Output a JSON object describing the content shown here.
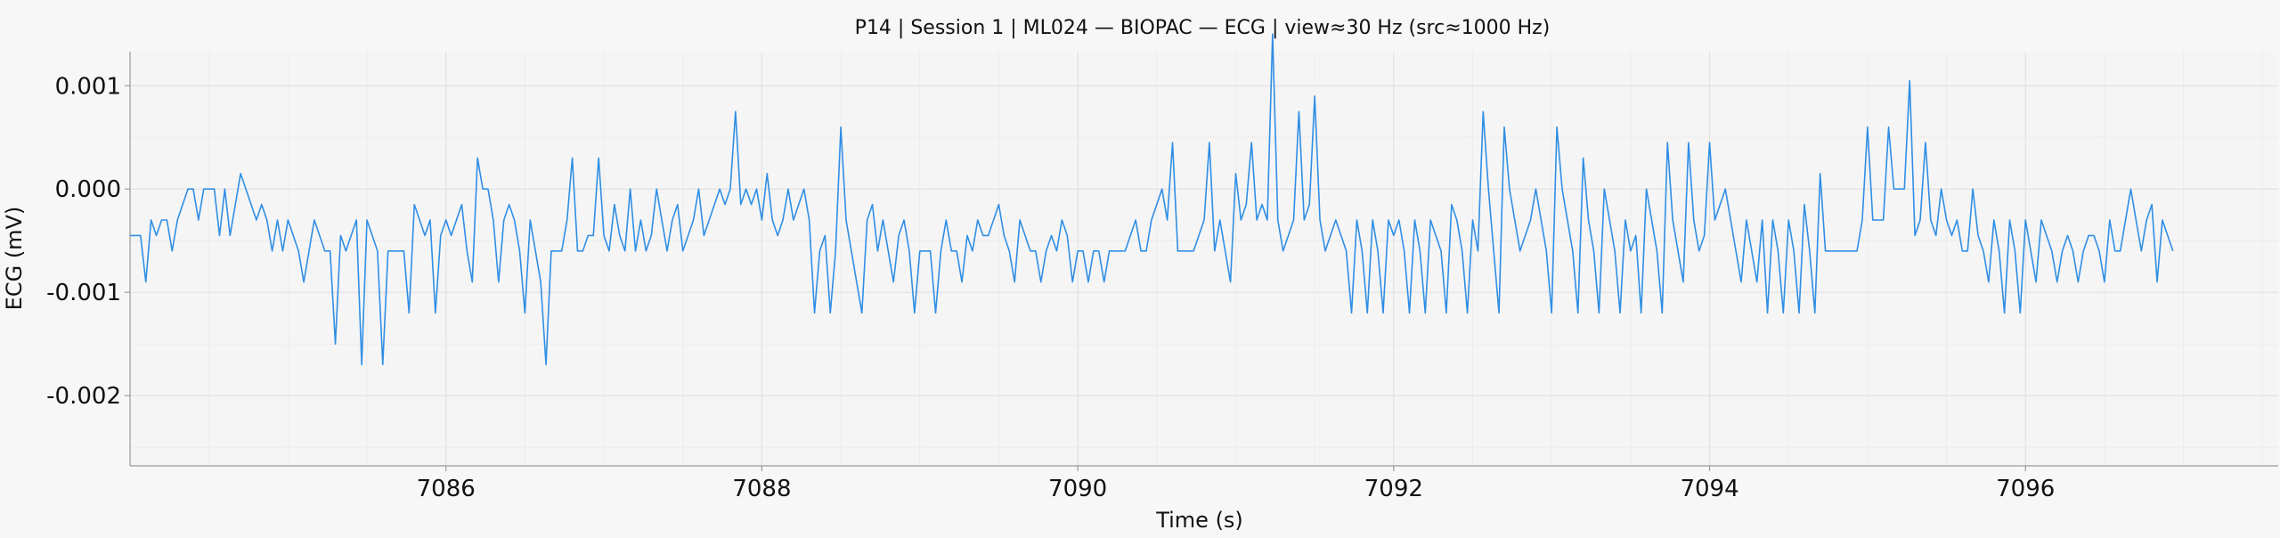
{
  "chart_data": {
    "type": "line",
    "title": "P14 | Session 1 | ML024 — BIOPAC — ECG | view≈30 Hz (src≈1000 Hz)",
    "xlabel": "Time (s)",
    "ylabel": "ECG (mV)",
    "xlim": [
      7084.0,
      7097.6
    ],
    "ylim": [
      -0.00268,
      0.00133
    ],
    "x_ticks": [
      7086,
      7088,
      7090,
      7092,
      7094,
      7096
    ],
    "x_tick_labels": [
      "7086",
      "7088",
      "7090",
      "7092",
      "7094",
      "7096"
    ],
    "y_ticks": [
      0.001,
      0.0,
      -0.001,
      -0.002
    ],
    "y_tick_labels": [
      "0.001",
      "0.000",
      "-0.001",
      "-0.002"
    ],
    "grid": true,
    "legend": "none",
    "x_start": 7084.0,
    "sample_rate_hz": 30,
    "series": [
      {
        "color": "#2f8ee5",
        "values": [
          -0.00045,
          -0.00045,
          -0.00045,
          -0.0009,
          -0.0003,
          -0.00045,
          -0.0003,
          -0.0003,
          -0.0006,
          -0.0003,
          -0.00015,
          0.0,
          0.0,
          -0.0003,
          0.0,
          0.0,
          0.0,
          -0.00045,
          0.0,
          -0.00045,
          -0.00015,
          0.00015,
          0.0,
          -0.00015,
          -0.0003,
          -0.00015,
          -0.0003,
          -0.0006,
          -0.0003,
          -0.0006,
          -0.0003,
          -0.00045,
          -0.0006,
          -0.0009,
          -0.0006,
          -0.0003,
          -0.00045,
          -0.0006,
          -0.0006,
          -0.0015,
          -0.00045,
          -0.0006,
          -0.00045,
          -0.0003,
          -0.0017,
          -0.0003,
          -0.00045,
          -0.0006,
          -0.0017,
          -0.0006,
          -0.0006,
          -0.0006,
          -0.0006,
          -0.0012,
          -0.00015,
          -0.0003,
          -0.00045,
          -0.0003,
          -0.0012,
          -0.00045,
          -0.0003,
          -0.00045,
          -0.0003,
          -0.00015,
          -0.0006,
          -0.0009,
          0.0003,
          0.0,
          0.0,
          -0.0003,
          -0.0009,
          -0.0003,
          -0.00015,
          -0.0003,
          -0.0006,
          -0.0012,
          -0.0003,
          -0.0006,
          -0.0009,
          -0.0017,
          -0.0006,
          -0.0006,
          -0.0006,
          -0.0003,
          0.0003,
          -0.0006,
          -0.0006,
          -0.00045,
          -0.00045,
          0.0003,
          -0.00045,
          -0.0006,
          -0.00015,
          -0.00045,
          -0.0006,
          0.0,
          -0.0006,
          -0.0003,
          -0.0006,
          -0.00045,
          0.0,
          -0.0003,
          -0.0006,
          -0.0003,
          -0.00015,
          -0.0006,
          -0.00045,
          -0.0003,
          0.0,
          -0.00045,
          -0.0003,
          -0.00015,
          0.0,
          -0.00015,
          0.0,
          0.00075,
          -0.00015,
          0.0,
          -0.00015,
          0.0,
          -0.0003,
          0.00015,
          -0.0003,
          -0.00045,
          -0.0003,
          0.0,
          -0.0003,
          -0.00015,
          0.0,
          -0.0003,
          -0.0012,
          -0.0006,
          -0.00045,
          -0.0012,
          -0.0006,
          0.0006,
          -0.0003,
          -0.0006,
          -0.0009,
          -0.0012,
          -0.0003,
          -0.00015,
          -0.0006,
          -0.0003,
          -0.0006,
          -0.0009,
          -0.00045,
          -0.0003,
          -0.0006,
          -0.0012,
          -0.0006,
          -0.0006,
          -0.0006,
          -0.0012,
          -0.0006,
          -0.0003,
          -0.0006,
          -0.0006,
          -0.0009,
          -0.00045,
          -0.0006,
          -0.0003,
          -0.00045,
          -0.00045,
          -0.0003,
          -0.00015,
          -0.00045,
          -0.0006,
          -0.0009,
          -0.0003,
          -0.00045,
          -0.0006,
          -0.0006,
          -0.0009,
          -0.0006,
          -0.00045,
          -0.0006,
          -0.0003,
          -0.00045,
          -0.0009,
          -0.0006,
          -0.0006,
          -0.0009,
          -0.0006,
          -0.0006,
          -0.0009,
          -0.0006,
          -0.0006,
          -0.0006,
          -0.0006,
          -0.00045,
          -0.0003,
          -0.0006,
          -0.0006,
          -0.0003,
          -0.00015,
          0.0,
          -0.0003,
          0.00045,
          -0.0006,
          -0.0006,
          -0.0006,
          -0.0006,
          -0.00045,
          -0.0003,
          0.00045,
          -0.0006,
          -0.0003,
          -0.0006,
          -0.0009,
          0.00015,
          -0.0003,
          -0.00015,
          0.00045,
          -0.0003,
          -0.00015,
          -0.0003,
          0.0015,
          -0.0003,
          -0.0006,
          -0.00045,
          -0.0003,
          0.00075,
          -0.0003,
          -0.00015,
          0.0009,
          -0.0003,
          -0.0006,
          -0.00045,
          -0.0003,
          -0.00045,
          -0.0006,
          -0.0012,
          -0.0003,
          -0.0006,
          -0.0012,
          -0.0003,
          -0.0006,
          -0.0012,
          -0.0003,
          -0.00045,
          -0.0003,
          -0.0006,
          -0.0012,
          -0.0003,
          -0.0006,
          -0.0012,
          -0.0003,
          -0.00045,
          -0.0006,
          -0.0012,
          -0.00015,
          -0.0003,
          -0.0006,
          -0.0012,
          -0.0003,
          -0.0006,
          0.00075,
          0.0,
          -0.0006,
          -0.0012,
          0.0006,
          0.0,
          -0.0003,
          -0.0006,
          -0.00045,
          -0.0003,
          0.0,
          -0.0003,
          -0.0006,
          -0.0012,
          0.0006,
          0.0,
          -0.0003,
          -0.0006,
          -0.0012,
          0.0003,
          -0.0003,
          -0.0006,
          -0.0012,
          0.0,
          -0.0003,
          -0.0006,
          -0.0012,
          -0.0003,
          -0.0006,
          -0.00045,
          -0.0012,
          0.0,
          -0.0003,
          -0.0006,
          -0.0012,
          0.00045,
          -0.0003,
          -0.0006,
          -0.0009,
          0.00045,
          -0.0003,
          -0.0006,
          -0.00045,
          0.00045,
          -0.0003,
          -0.00015,
          0.0,
          -0.0003,
          -0.0006,
          -0.0009,
          -0.0003,
          -0.0006,
          -0.0009,
          -0.0003,
          -0.0012,
          -0.0003,
          -0.0006,
          -0.0012,
          -0.0003,
          -0.0006,
          -0.0012,
          -0.00015,
          -0.0006,
          -0.0012,
          0.00015,
          -0.0006,
          -0.0006,
          -0.0006,
          -0.0006,
          -0.0006,
          -0.0006,
          -0.0006,
          -0.0003,
          0.0006,
          -0.0003,
          -0.0003,
          -0.0003,
          0.0006,
          0.0,
          0.0,
          0.0,
          0.00105,
          -0.00045,
          -0.0003,
          0.00045,
          -0.0003,
          -0.00045,
          0.0,
          -0.0003,
          -0.00045,
          -0.0003,
          -0.0006,
          -0.0006,
          0.0,
          -0.00045,
          -0.0006,
          -0.0009,
          -0.0003,
          -0.0006,
          -0.0012,
          -0.0003,
          -0.0006,
          -0.0012,
          -0.0003,
          -0.0006,
          -0.0009,
          -0.0003,
          -0.00045,
          -0.0006,
          -0.0009,
          -0.0006,
          -0.00045,
          -0.0006,
          -0.0009,
          -0.0006,
          -0.00045,
          -0.00045,
          -0.0006,
          -0.0009,
          -0.0003,
          -0.0006,
          -0.0006,
          -0.0003,
          0.0,
          -0.0003,
          -0.0006,
          -0.0003,
          -0.00015,
          -0.0009,
          -0.0003,
          -0.00045,
          -0.0006
        ]
      }
    ]
  }
}
